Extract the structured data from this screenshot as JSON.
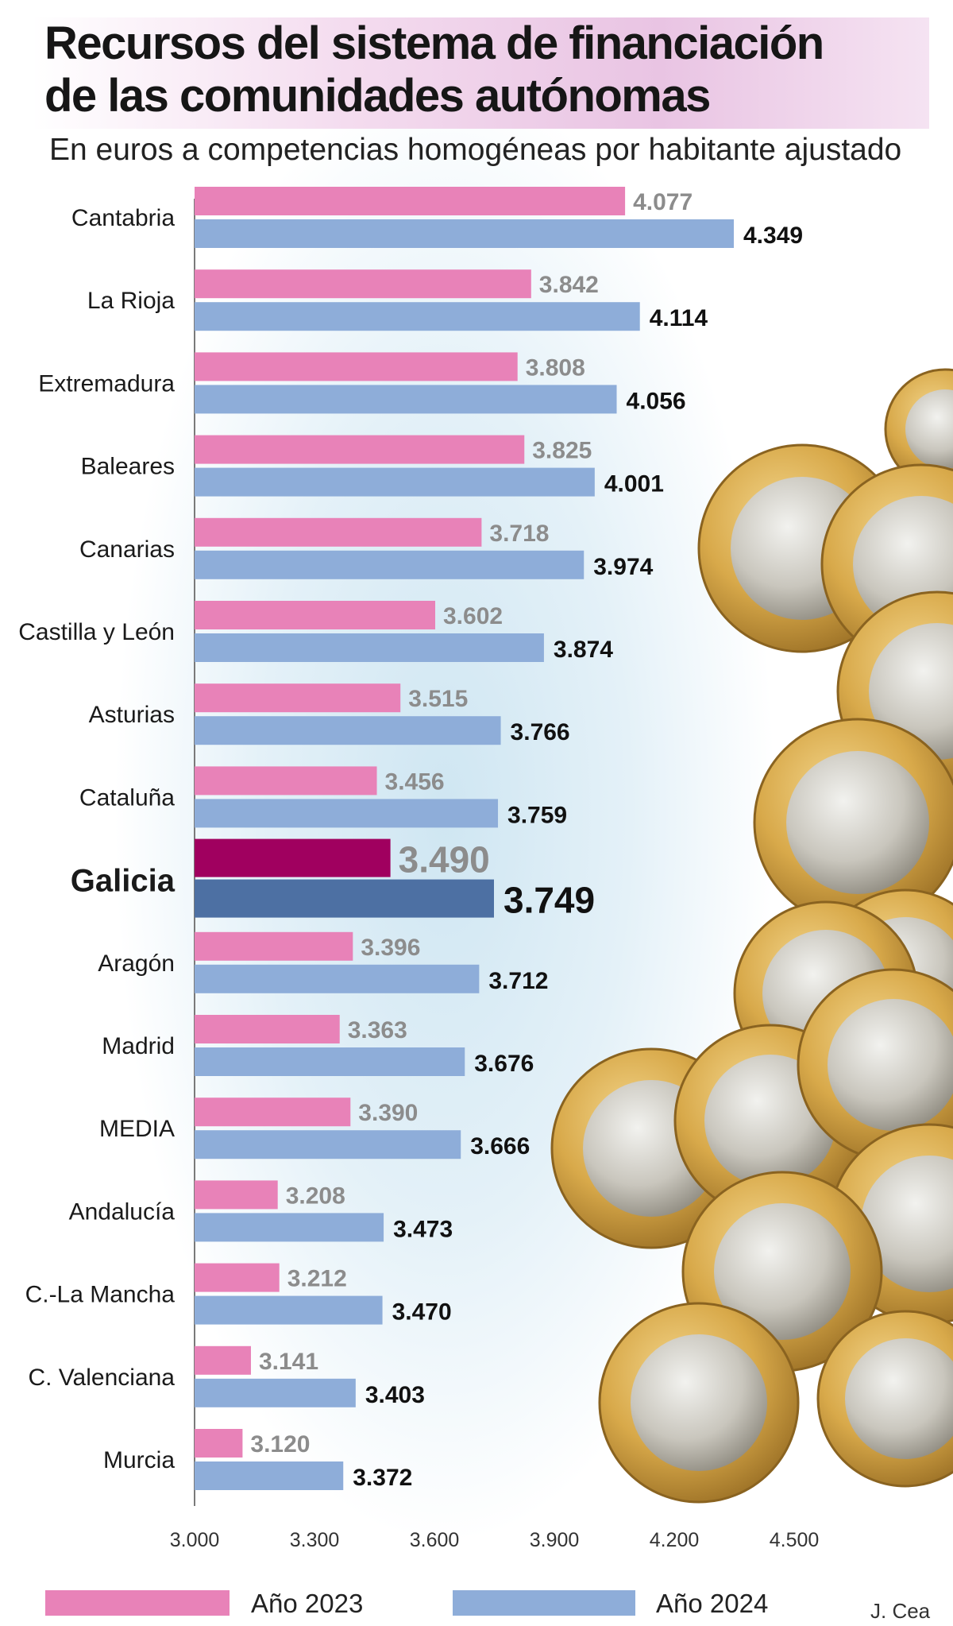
{
  "header": {
    "title_line1": "Recursos del sistema de financiación",
    "title_line2": "de las comunidades autónomas",
    "subtitle": "En euros a competencias homogéneas por habitante ajustado"
  },
  "legend": {
    "series1": "Año 2023",
    "series2": "Año 2024"
  },
  "credit": "J. Cea",
  "colors": {
    "pink": "#e882b8",
    "blue": "#8eadd9",
    "highlight_pink": "#a0005f",
    "highlight_blue": "#4d70a3"
  },
  "chart_data": {
    "type": "bar",
    "orientation": "horizontal",
    "title": "Recursos del sistema de financiación de las comunidades autónomas",
    "subtitle": "En euros a competencias homogéneas por habitante ajustado",
    "categories": [
      "Cantabria",
      "La Rioja",
      "Extremadura",
      "Baleares",
      "Canarias",
      "Castilla y León",
      "Asturias",
      "Cataluña",
      "Galicia",
      "Aragón",
      "Madrid",
      "MEDIA",
      "Andalucía",
      "C.-La Mancha",
      "C. Valenciana",
      "Murcia"
    ],
    "highlight": "Galicia",
    "series": [
      {
        "name": "Año 2023",
        "values": [
          4077,
          3842,
          3808,
          3825,
          3718,
          3602,
          3515,
          3456,
          3490,
          3396,
          3363,
          3390,
          3208,
          3212,
          3141,
          3120
        ],
        "labels": [
          "4.077",
          "3.842",
          "3.808",
          "3.825",
          "3.718",
          "3.602",
          "3.515",
          "3.456",
          "3.490",
          "3.396",
          "3.363",
          "3.390",
          "3.208",
          "3.212",
          "3.141",
          "3.120"
        ]
      },
      {
        "name": "Año 2024",
        "values": [
          4349,
          4114,
          4056,
          4001,
          3974,
          3874,
          3766,
          3759,
          3749,
          3712,
          3676,
          3666,
          3473,
          3470,
          3403,
          3372
        ],
        "labels": [
          "4.349",
          "4.114",
          "4.056",
          "4.001",
          "3.974",
          "3.874",
          "3.766",
          "3.759",
          "3.749",
          "3.712",
          "3.676",
          "3.666",
          "3.473",
          "3.470",
          "3.403",
          "3.372"
        ]
      }
    ],
    "xlim": [
      3000,
      4500
    ],
    "xticks": [
      3000,
      3300,
      3600,
      3900,
      4200,
      4500
    ],
    "xtick_labels": [
      "3.000",
      "3.300",
      "3.600",
      "3.900",
      "4.200",
      "4.500"
    ],
    "grid": false,
    "legend_position": "bottom"
  }
}
